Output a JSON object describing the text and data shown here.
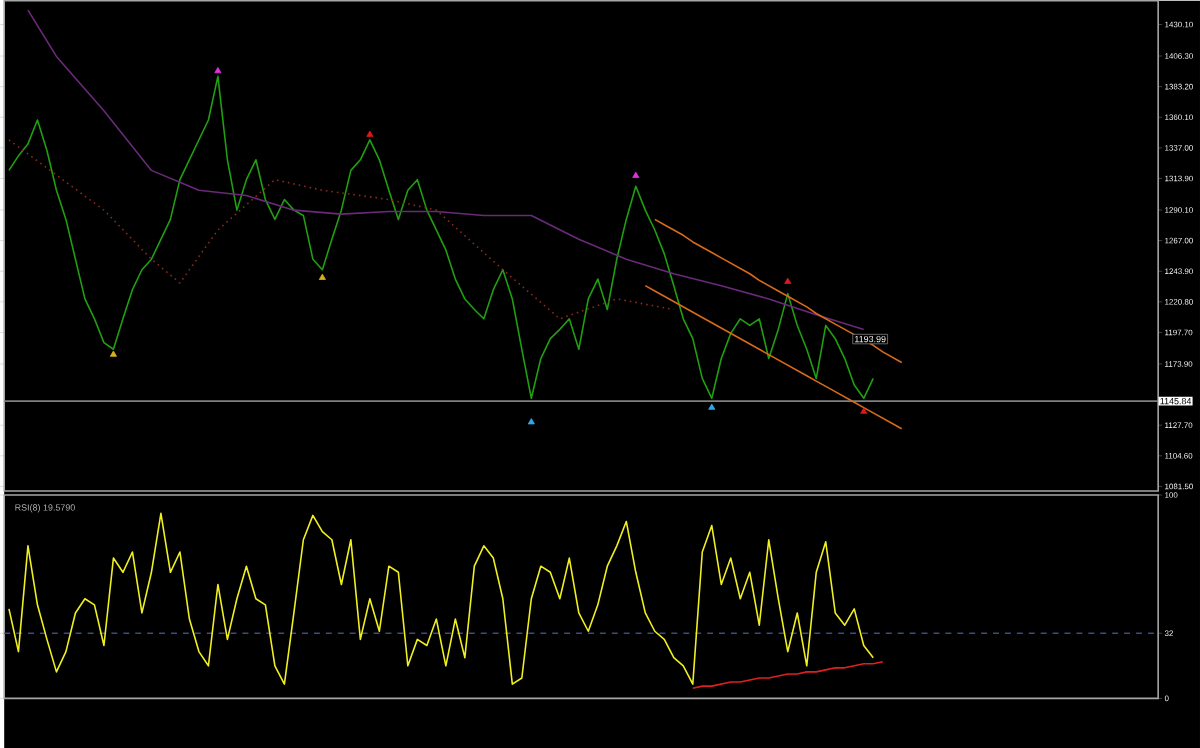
{
  "chart_data": [
    {
      "type": "line",
      "categories": [
        null,
        null,
        null,
        null,
        null,
        null,
        null,
        null,
        null,
        null,
        null,
        null,
        null,
        null,
        null,
        null,
        null,
        null,
        null,
        null,
        null,
        null,
        null,
        null,
        null,
        null,
        null,
        null,
        null,
        null,
        null,
        null,
        null,
        null,
        null,
        null,
        null,
        null,
        null,
        null,
        null,
        null,
        null,
        null,
        null,
        null,
        null,
        null,
        null,
        null,
        null,
        null,
        null,
        null,
        null,
        null,
        null,
        null,
        null,
        null,
        null,
        null,
        null,
        null,
        null,
        null,
        null,
        null,
        null,
        null,
        null,
        null,
        null,
        null,
        null,
        null,
        null,
        null,
        null,
        null,
        null,
        null,
        null,
        null,
        null,
        null,
        null,
        null,
        null,
        null,
        null,
        null,
        null,
        null,
        null,
        null,
        null,
        null,
        null,
        null,
        null,
        null,
        null,
        null,
        null,
        null,
        null,
        null,
        null,
        null,
        null,
        null,
        null,
        null,
        null,
        null,
        null,
        null,
        null,
        null,
        null,
        null
      ],
      "ylim": [
        1078,
        1448
      ],
      "yticks": [
        {
          "value": 1081.5,
          "label": "1081.50"
        },
        {
          "value": 1104.6,
          "label": "1104.60"
        },
        {
          "value": 1127.7,
          "label": "1127.70"
        },
        {
          "value": 1173.9,
          "label": "1173.90"
        },
        {
          "value": 1197.7,
          "label": "1197.70"
        },
        {
          "value": 1220.8,
          "label": "1220.80"
        },
        {
          "value": 1243.9,
          "label": "1243.90"
        },
        {
          "value": 1267,
          "label": "1267.00"
        },
        {
          "value": 1290.1,
          "label": "1290.10"
        },
        {
          "value": 1313.9,
          "label": "1313.90"
        },
        {
          "value": 1337,
          "label": "1337.00"
        },
        {
          "value": 1360.1,
          "label": "1360.10"
        },
        {
          "value": 1383.2,
          "label": "1383.20"
        },
        {
          "value": 1406.3,
          "label": "1406.30"
        },
        {
          "value": 1430.1,
          "label": "1430.10"
        }
      ],
      "tick_labels": "y",
      "ref_lines": [
        {
          "axis": "y",
          "value": 1145.84,
          "label": "1145.84",
          "color": "#808080"
        }
      ],
      "annotations": [
        "1193.99"
      ],
      "series": [
        {
          "color": "#20a010",
          "values": [
            1320,
            1331,
            1340,
            1358,
            1335,
            1305,
            1283,
            1253,
            1223,
            1208,
            1190,
            1185,
            1208,
            1230,
            1245,
            1253,
            1268,
            1283,
            1313,
            1328,
            1343,
            1358,
            1391,
            1328,
            1290,
            1313,
            1328,
            1298,
            1283,
            1298,
            1290,
            1286,
            1253,
            1245,
            1268,
            1290,
            1320,
            1328,
            1343,
            1328,
            1305,
            1283,
            1305,
            1313,
            1290,
            1275,
            1260,
            1238,
            1223,
            1215,
            1208,
            1230,
            1245,
            1223,
            1185,
            1148,
            1178,
            1193,
            1200,
            1208,
            1185,
            1223,
            1238,
            1215,
            1253,
            1283,
            1308,
            1290,
            1275,
            1257,
            1233,
            1208,
            1193,
            1163,
            1148,
            1178,
            1197,
            1208,
            1203,
            1208,
            1178,
            1200,
            1227,
            1203,
            1185,
            1163,
            1203,
            1193,
            1178,
            1158,
            1148,
            1163,
            null,
            null,
            null,
            null,
            null,
            null,
            null,
            null,
            null,
            null,
            null,
            null,
            null,
            null,
            null,
            null,
            null,
            null,
            null,
            null,
            null,
            null,
            null,
            null,
            null,
            null,
            null,
            null,
            null,
            null
          ]
        },
        {
          "color": "#6a2a7a",
          "values": [
            null,
            null,
            1441,
            null,
            null,
            1406,
            null,
            null,
            null,
            null,
            1365,
            null,
            null,
            null,
            null,
            1320,
            null,
            null,
            null,
            null,
            1305,
            null,
            null,
            null,
            null,
            1301,
            null,
            null,
            null,
            null,
            1290,
            null,
            null,
            null,
            null,
            1287,
            null,
            null,
            null,
            null,
            1289,
            null,
            null,
            null,
            null,
            1289,
            null,
            null,
            null,
            null,
            1286,
            null,
            null,
            null,
            null,
            1286,
            null,
            null,
            null,
            null,
            1268,
            null,
            null,
            null,
            null,
            1253,
            null,
            null,
            null,
            null,
            1242,
            null,
            null,
            null,
            null,
            1233,
            null,
            null,
            null,
            null,
            1223,
            null,
            null,
            null,
            null,
            1211,
            null,
            null,
            null,
            null,
            1200,
            null,
            null,
            null,
            null,
            null,
            null,
            null,
            null,
            null,
            null,
            null,
            null,
            null,
            null,
            null,
            null,
            null,
            null,
            null,
            null,
            null,
            null,
            null,
            null,
            null,
            null,
            null,
            null,
            null,
            null,
            null
          ]
        },
        {
          "color": "#8a2a1a",
          "line_style": "dotted",
          "values": [
            1343,
            null,
            null,
            null,
            null,
            null,
            null,
            null,
            null,
            null,
            1290,
            null,
            null,
            null,
            null,
            1253,
            null,
            null,
            1235,
            null,
            null,
            null,
            1275,
            null,
            null,
            null,
            null,
            null,
            1313,
            null,
            null,
            null,
            null,
            1305,
            null,
            null,
            null,
            null,
            null,
            null,
            1298,
            null,
            null,
            null,
            null,
            1290,
            null,
            null,
            null,
            null,
            null,
            null,
            1245,
            null,
            null,
            null,
            null,
            null,
            1208,
            null,
            null,
            null,
            null,
            null,
            1223,
            null,
            null,
            null,
            null,
            null,
            1215,
            null,
            null,
            null,
            null,
            null,
            null,
            null,
            null,
            null,
            null,
            null,
            null,
            null,
            null,
            null,
            null,
            null,
            null,
            null,
            null,
            null,
            null,
            null,
            null,
            null,
            null,
            null,
            null,
            null,
            null,
            null,
            null,
            null,
            null,
            null,
            null,
            null,
            null,
            null,
            null,
            null,
            null,
            null,
            null,
            null,
            null,
            null,
            null,
            null,
            null,
            null
          ]
        },
        {
          "color": "#d86a1a",
          "values": [
            null,
            null,
            null,
            null,
            null,
            null,
            null,
            null,
            null,
            null,
            null,
            null,
            null,
            null,
            null,
            null,
            null,
            null,
            null,
            null,
            null,
            null,
            null,
            null,
            null,
            null,
            null,
            null,
            null,
            null,
            null,
            null,
            null,
            null,
            null,
            null,
            null,
            null,
            null,
            null,
            null,
            null,
            null,
            null,
            null,
            null,
            null,
            null,
            null,
            null,
            null,
            null,
            null,
            null,
            null,
            null,
            null,
            null,
            null,
            null,
            null,
            null,
            null,
            null,
            null,
            null,
            null,
            null,
            1283,
            1279,
            1275,
            1271,
            1266,
            1262,
            1258,
            1254,
            1250,
            1246,
            1242,
            1237,
            1233,
            1229,
            1225,
            1221,
            1217,
            1212,
            1208,
            1204,
            1200,
            1196,
            1192,
            1188,
            1183,
            1179,
            1175,
            null,
            null,
            null,
            null,
            null,
            null,
            null,
            null,
            null,
            null,
            null,
            null,
            null,
            null,
            null,
            null,
            null,
            null,
            null,
            null,
            null,
            null,
            null,
            null,
            null,
            null,
            null
          ]
        },
        {
          "color": "#d86a1a",
          "values": [
            null,
            null,
            null,
            null,
            null,
            null,
            null,
            null,
            null,
            null,
            null,
            null,
            null,
            null,
            null,
            null,
            null,
            null,
            null,
            null,
            null,
            null,
            null,
            null,
            null,
            null,
            null,
            null,
            null,
            null,
            null,
            null,
            null,
            null,
            null,
            null,
            null,
            null,
            null,
            null,
            null,
            null,
            null,
            null,
            null,
            null,
            null,
            null,
            null,
            null,
            null,
            null,
            null,
            null,
            null,
            null,
            null,
            null,
            null,
            null,
            null,
            null,
            null,
            null,
            null,
            null,
            null,
            1233,
            1229,
            1225,
            1221,
            1217,
            1213,
            1209,
            1205,
            1201,
            1197,
            1193,
            1189,
            1185,
            1181,
            1177,
            1173,
            1169,
            1165,
            1161,
            1157,
            1153,
            1149,
            1145,
            1141,
            1137,
            1133,
            1129,
            1125,
            null,
            null,
            null,
            null,
            null,
            null,
            null,
            null,
            null,
            null,
            null,
            null,
            null,
            null,
            null,
            null,
            null,
            null,
            null,
            null,
            null,
            null,
            null,
            null,
            null,
            null,
            null
          ]
        },
        {
          "type": "scatter",
          "marker": "triangle",
          "color": "#e030e0",
          "values": [
            null,
            null,
            null,
            null,
            null,
            null,
            null,
            null,
            null,
            null,
            null,
            null,
            null,
            null,
            null,
            null,
            null,
            null,
            null,
            null,
            null,
            null,
            1395,
            null,
            null,
            null,
            null,
            null,
            null,
            null,
            null,
            null,
            null,
            null,
            null,
            null,
            null,
            null,
            null,
            null,
            null,
            null,
            null,
            null,
            null,
            null,
            null,
            null,
            null,
            null,
            null,
            null,
            null,
            null,
            null,
            null,
            null,
            null,
            null,
            null,
            null,
            null,
            null,
            null,
            null,
            null,
            1316,
            null,
            null,
            null,
            null,
            null,
            null,
            null,
            null,
            null,
            null,
            null,
            null,
            null,
            null,
            null,
            null,
            null,
            null,
            null,
            null,
            null,
            null,
            null,
            null,
            null,
            null,
            null,
            null,
            null,
            null,
            null,
            null,
            null,
            null,
            null,
            null,
            null,
            null,
            null,
            null,
            null,
            null,
            null,
            null,
            null,
            null,
            null,
            null,
            null,
            null,
            null,
            null,
            null,
            null,
            null
          ]
        },
        {
          "type": "scatter",
          "marker": "triangle",
          "color": "#e01818",
          "values": [
            null,
            null,
            null,
            null,
            null,
            null,
            null,
            null,
            null,
            null,
            null,
            null,
            null,
            null,
            null,
            null,
            null,
            null,
            null,
            null,
            null,
            null,
            null,
            null,
            null,
            null,
            null,
            null,
            null,
            null,
            null,
            null,
            null,
            null,
            null,
            null,
            null,
            null,
            1347,
            null,
            null,
            null,
            null,
            null,
            null,
            null,
            null,
            null,
            null,
            null,
            null,
            null,
            null,
            null,
            null,
            null,
            null,
            null,
            null,
            null,
            null,
            null,
            null,
            null,
            null,
            null,
            null,
            null,
            null,
            null,
            null,
            null,
            null,
            null,
            null,
            null,
            null,
            null,
            null,
            null,
            null,
            null,
            1236,
            null,
            null,
            null,
            null,
            null,
            null,
            null,
            1138,
            null,
            null,
            null,
            null,
            null,
            null,
            null,
            null,
            null,
            null,
            null,
            null,
            null,
            null,
            null,
            null,
            null,
            null,
            null,
            null,
            null,
            null,
            null,
            null,
            null,
            null,
            null,
            null,
            null,
            null,
            null
          ]
        },
        {
          "type": "scatter",
          "marker": "triangle",
          "color": "#d8b020",
          "values": [
            null,
            null,
            null,
            null,
            null,
            null,
            null,
            null,
            null,
            null,
            null,
            1181,
            null,
            null,
            null,
            null,
            null,
            null,
            null,
            null,
            null,
            null,
            null,
            null,
            null,
            null,
            null,
            null,
            null,
            null,
            null,
            null,
            null,
            1239,
            null,
            null,
            null,
            null,
            null,
            null,
            null,
            null,
            null,
            null,
            null,
            null,
            null,
            null,
            null,
            null,
            null,
            null,
            null,
            null,
            null,
            null,
            null,
            null,
            null,
            null,
            null,
            null,
            null,
            null,
            null,
            null,
            null,
            null,
            null,
            null,
            null,
            null,
            null,
            null,
            null,
            null,
            null,
            null,
            null,
            null,
            null,
            null,
            null,
            null,
            null,
            null,
            null,
            null,
            null,
            null,
            null,
            null,
            null,
            null,
            null,
            null,
            null,
            null,
            null,
            null,
            null,
            null,
            null,
            null,
            null,
            null,
            null,
            null,
            null,
            null,
            null,
            null,
            null,
            null,
            null,
            null,
            null,
            null,
            null,
            null,
            null,
            null
          ]
        },
        {
          "type": "scatter",
          "marker": "triangle",
          "color": "#30a8e8",
          "values": [
            null,
            null,
            null,
            null,
            null,
            null,
            null,
            null,
            null,
            null,
            null,
            null,
            null,
            null,
            null,
            null,
            null,
            null,
            null,
            null,
            null,
            null,
            null,
            null,
            null,
            null,
            null,
            null,
            null,
            null,
            null,
            null,
            null,
            null,
            null,
            null,
            null,
            null,
            null,
            null,
            null,
            null,
            null,
            null,
            null,
            null,
            null,
            null,
            null,
            null,
            null,
            null,
            null,
            null,
            null,
            1130,
            null,
            null,
            null,
            null,
            null,
            null,
            null,
            null,
            null,
            null,
            null,
            null,
            null,
            null,
            null,
            null,
            null,
            null,
            1141,
            null,
            null,
            null,
            null,
            null,
            null,
            null,
            null,
            null,
            null,
            null,
            null,
            null,
            null,
            null,
            null,
            null,
            null,
            null,
            null,
            null,
            null,
            null,
            null,
            null,
            null,
            null,
            null,
            null,
            null,
            null,
            null,
            null,
            null,
            null,
            null,
            null,
            null,
            null,
            null,
            null,
            null,
            null,
            null,
            null,
            null,
            null
          ]
        }
      ]
    },
    {
      "type": "line",
      "title": "RSI(8) 19.5790",
      "categories": [
        null,
        null,
        null,
        null,
        null,
        null,
        null,
        null,
        null,
        null,
        null,
        null,
        null,
        null,
        null,
        null,
        null,
        null,
        null,
        null,
        null,
        null,
        null,
        null,
        null,
        null,
        null,
        null,
        null,
        null,
        null,
        null,
        null,
        null,
        null,
        null,
        null,
        null,
        null,
        null,
        null,
        null,
        null,
        null,
        null,
        null,
        null,
        null,
        null,
        null,
        null,
        null,
        null,
        null,
        null,
        null,
        null,
        null,
        null,
        null,
        null,
        null,
        null,
        null,
        null,
        null,
        null,
        null,
        null,
        null,
        null,
        null,
        null,
        null,
        null,
        null,
        null,
        null,
        null,
        null,
        null,
        null,
        null,
        null,
        null,
        null,
        null,
        null,
        null,
        null,
        null,
        null,
        null,
        null,
        null,
        null,
        null,
        null,
        null,
        null,
        null,
        null,
        null,
        null,
        null,
        null,
        null,
        null,
        null,
        null,
        null,
        null,
        null,
        null,
        null,
        null,
        null,
        null,
        null,
        null,
        null,
        null
      ],
      "ylim": [
        0,
        100
      ],
      "yticks": [
        0,
        32,
        100
      ],
      "tick_labels": "y",
      "ref_lines": [
        {
          "axis": "y",
          "value": 32,
          "color": "#3a4a8a",
          "line_style": "dashed"
        }
      ],
      "series": [
        {
          "color": "#f0f020",
          "values": [
            44,
            23,
            75,
            46,
            29,
            13,
            23,
            42,
            49,
            46,
            26,
            69,
            62,
            72,
            42,
            62,
            91,
            62,
            72,
            39,
            23,
            16,
            56,
            29,
            49,
            65,
            49,
            46,
            16,
            7,
            42,
            78,
            90,
            82,
            78,
            56,
            78,
            29,
            49,
            33,
            65,
            62,
            16,
            29,
            26,
            39,
            16,
            39,
            20,
            65,
            75,
            69,
            49,
            7,
            10,
            49,
            65,
            62,
            49,
            69,
            42,
            33,
            46,
            65,
            75,
            87,
            62,
            42,
            33,
            29,
            20,
            16,
            7,
            72,
            85,
            56,
            69,
            49,
            62,
            36,
            78,
            49,
            23,
            42,
            16,
            62,
            77,
            42,
            36,
            44,
            26,
            20,
            null,
            null,
            null,
            null,
            null,
            null,
            null,
            null,
            null,
            null,
            null,
            null,
            null,
            null,
            null,
            null,
            null,
            null,
            null,
            null,
            null,
            null,
            null,
            null,
            null,
            null,
            null,
            null,
            null,
            null
          ]
        },
        {
          "color": "#e02020",
          "values": [
            null,
            null,
            null,
            null,
            null,
            null,
            null,
            null,
            null,
            null,
            null,
            null,
            null,
            null,
            null,
            null,
            null,
            null,
            null,
            null,
            null,
            null,
            null,
            null,
            null,
            null,
            null,
            null,
            null,
            null,
            null,
            null,
            null,
            null,
            null,
            null,
            null,
            null,
            null,
            null,
            null,
            null,
            null,
            null,
            null,
            null,
            null,
            null,
            null,
            null,
            null,
            null,
            null,
            null,
            null,
            null,
            null,
            null,
            null,
            null,
            null,
            null,
            null,
            null,
            null,
            null,
            null,
            null,
            null,
            null,
            null,
            null,
            5,
            6,
            6,
            7,
            8,
            8,
            9,
            10,
            10,
            11,
            12,
            12,
            13,
            13,
            14,
            15,
            15,
            16,
            17,
            17,
            18,
            null,
            null,
            null,
            null,
            null,
            null,
            null,
            null,
            null,
            null,
            null,
            null,
            null,
            null,
            null,
            null,
            null,
            null,
            null,
            null,
            null,
            null,
            null,
            null,
            null,
            null,
            null,
            null,
            null
          ]
        }
      ]
    }
  ]
}
